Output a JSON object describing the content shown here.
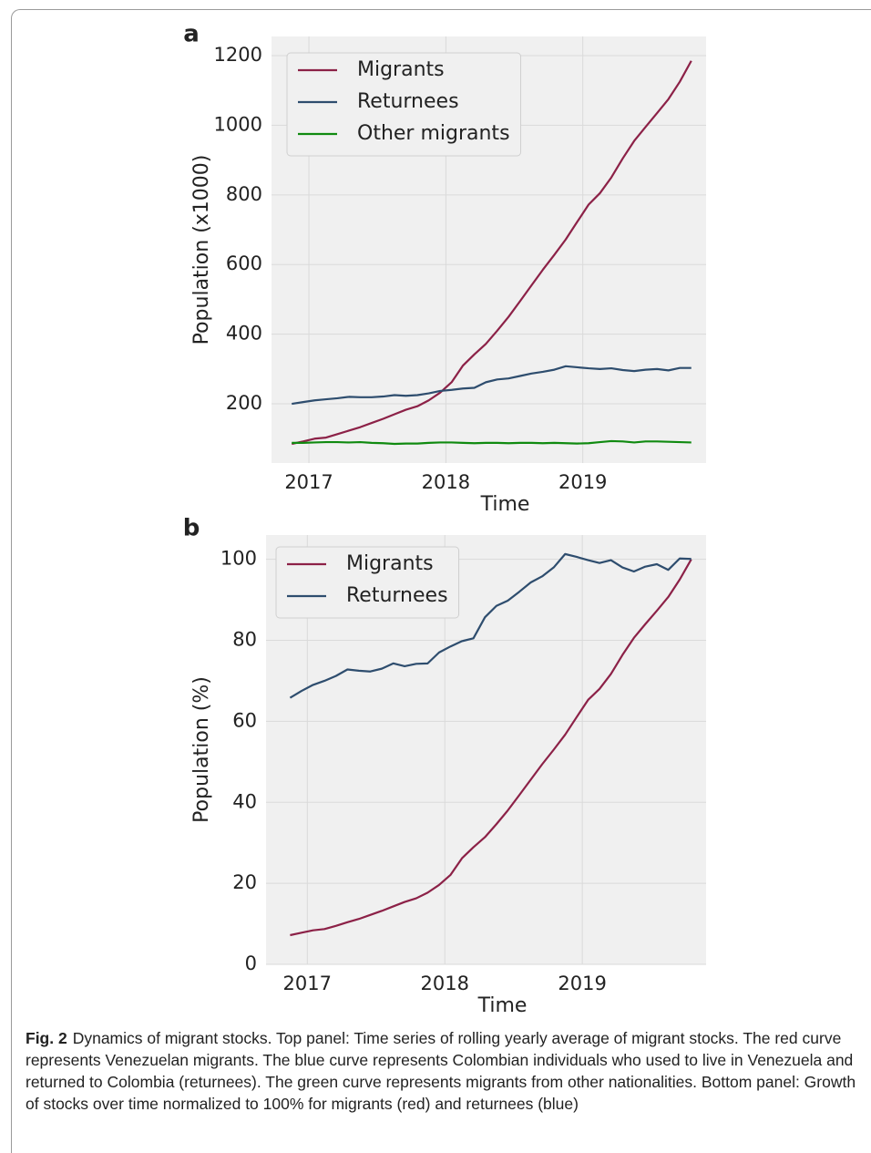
{
  "figure": {
    "label": "Fig. 2",
    "caption": "Dynamics of migrant stocks. Top panel: Time series of rolling yearly average of migrant stocks. The red curve represents Venezuelan migrants. The blue curve represents Colombian individuals who used to live in Venezuela and returned to Colombia (returnees). The green curve represents migrants from other nationalities. Bottom panel: Growth of stocks over time normalized to 100% for migrants (red) and returnees (blue)"
  },
  "chart_data": [
    {
      "type": "line",
      "panel_label": "a",
      "x_label": "Time",
      "y_label": "Population (x1000)",
      "x": [
        2016.875,
        2016.958,
        2017.042,
        2017.125,
        2017.208,
        2017.292,
        2017.375,
        2017.458,
        2017.542,
        2017.625,
        2017.708,
        2017.792,
        2017.875,
        2017.958,
        2018.042,
        2018.125,
        2018.208,
        2018.292,
        2018.375,
        2018.458,
        2018.542,
        2018.625,
        2018.708,
        2018.792,
        2018.875,
        2018.958,
        2019.042,
        2019.125,
        2019.208,
        2019.292,
        2019.375,
        2019.458,
        2019.542,
        2019.625,
        2019.708,
        2019.792
      ],
      "series": [
        {
          "name": "Migrants",
          "color": "#8c2147",
          "values": [
            85,
            92,
            100,
            103,
            113,
            123,
            133,
            145,
            157,
            170,
            183,
            193,
            210,
            232,
            262,
            310,
            342,
            372,
            410,
            450,
            495,
            540,
            585,
            628,
            672,
            722,
            772,
            805,
            850,
            905,
            955,
            995,
            1035,
            1075,
            1125,
            1185
          ]
        },
        {
          "name": "Returnees",
          "color": "#2e4d6e",
          "values": [
            200,
            205,
            210,
            213,
            216,
            220,
            219,
            219,
            221,
            225,
            223,
            225,
            230,
            237,
            240,
            244,
            246,
            262,
            270,
            273,
            280,
            287,
            292,
            298,
            308,
            305,
            302,
            300,
            302,
            297,
            294,
            298,
            300,
            296,
            303,
            303
          ]
        },
        {
          "name": "Other migrants",
          "color": "#108a10",
          "values": [
            88,
            88,
            89,
            90,
            90,
            89,
            90,
            88,
            87,
            85,
            86,
            86,
            88,
            89,
            89,
            88,
            87,
            88,
            88,
            87,
            88,
            88,
            87,
            88,
            87,
            86,
            87,
            90,
            93,
            92,
            89,
            92,
            92,
            91,
            90,
            89
          ]
        }
      ],
      "xlim": [
        2016.727,
        2019.9
      ],
      "xticks": [
        2017,
        2018,
        2019
      ],
      "ylim": [
        30,
        1255
      ],
      "yticks": [
        200,
        400,
        600,
        800,
        1000,
        1200
      ],
      "grid": true,
      "legend": "upper left"
    },
    {
      "type": "line",
      "panel_label": "b",
      "x_label": "Time",
      "y_label": "Population (%)",
      "x": [
        2016.875,
        2016.958,
        2017.042,
        2017.125,
        2017.208,
        2017.292,
        2017.375,
        2017.458,
        2017.542,
        2017.625,
        2017.708,
        2017.792,
        2017.875,
        2017.958,
        2018.042,
        2018.125,
        2018.208,
        2018.292,
        2018.375,
        2018.458,
        2018.542,
        2018.625,
        2018.708,
        2018.792,
        2018.875,
        2018.958,
        2019.042,
        2019.125,
        2019.208,
        2019.292,
        2019.375,
        2019.458,
        2019.542,
        2019.625,
        2019.708,
        2019.792
      ],
      "series": [
        {
          "name": "Migrants",
          "color": "#8c2147",
          "values": [
            7.2,
            7.8,
            8.4,
            8.7,
            9.5,
            10.4,
            11.2,
            12.2,
            13.2,
            14.3,
            15.4,
            16.3,
            17.7,
            19.6,
            22.1,
            26.2,
            28.9,
            31.4,
            34.6,
            38,
            41.8,
            45.6,
            49.4,
            53,
            56.7,
            61,
            65.3,
            68,
            71.7,
            76.4,
            80.6,
            84,
            87.3,
            90.7,
            95,
            100
          ]
        },
        {
          "name": "Returnees",
          "color": "#2e4d6e",
          "values": [
            65.8,
            67.5,
            69,
            70,
            71.2,
            72.8,
            72.5,
            72.3,
            73,
            74.3,
            73.6,
            74.2,
            74.3,
            77,
            78.5,
            79.8,
            80.5,
            85.7,
            88.5,
            89.8,
            92,
            94.3,
            95.8,
            98,
            101.3,
            100.6,
            99.8,
            99.1,
            99.8,
            98,
            97,
            98.2,
            98.8,
            97.4,
            100.2,
            100.1
          ]
        }
      ],
      "xlim": [
        2016.7,
        2019.9
      ],
      "xticks": [
        2017,
        2018,
        2019
      ],
      "ylim": [
        0,
        106
      ],
      "yticks": [
        0,
        20,
        40,
        60,
        80,
        100
      ],
      "grid": true,
      "legend": "upper left"
    }
  ]
}
